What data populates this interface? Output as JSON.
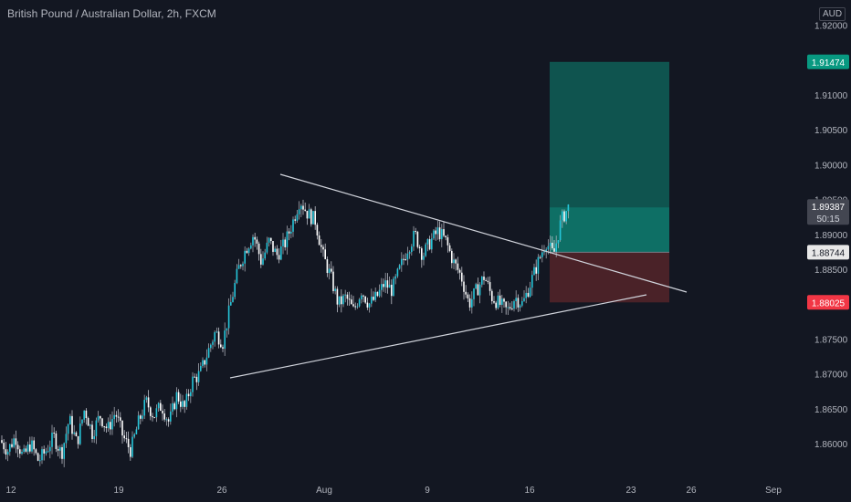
{
  "title": "British Pound / Australian Dollar, 2h, FXCM",
  "currency": "AUD",
  "chart_data": {
    "type": "candlestick",
    "symbol": "GBPAUD",
    "interval": "2h",
    "source": "FXCM",
    "yticks": [
      "1.92000",
      "1.91000",
      "1.90500",
      "1.90000",
      "1.89500",
      "1.89000",
      "1.88500",
      "1.87500",
      "1.87000",
      "1.86500",
      "1.86000"
    ],
    "ytick_values": [
      1.92,
      1.91,
      1.905,
      1.9,
      1.895,
      1.89,
      1.885,
      1.875,
      1.87,
      1.865,
      1.86
    ],
    "xticks": [
      "12",
      "19",
      "26",
      "Aug",
      "9",
      "16",
      "23",
      "26",
      "Sep"
    ],
    "ylim": [
      1.8565,
      1.9215
    ],
    "price_labels": {
      "target": "1.91474",
      "current": "1.89387",
      "countdown": "50:15",
      "entry": "1.88744",
      "stop": "1.88025"
    },
    "levels": {
      "target": 1.91474,
      "current": 1.89387,
      "entry": 1.88744,
      "stop": 1.88025
    },
    "colors": {
      "up": "#26a69a",
      "down": "#ef5350",
      "upBody": "#26c6da",
      "target_label": "#089981",
      "stop_label": "#f23645",
      "current_label": "#434651",
      "profit_zone": "#0f544f",
      "loss_zone": "#4a2228",
      "lines": "#d1d4dc"
    },
    "series_path": [
      [
        0,
        1.8605
      ],
      [
        1,
        1.859
      ],
      [
        2,
        1.861
      ],
      [
        3,
        1.858
      ],
      [
        4,
        1.86
      ],
      [
        5,
        1.8575
      ],
      [
        6,
        1.859
      ],
      [
        7,
        1.861
      ],
      [
        8,
        1.8585
      ],
      [
        9,
        1.8635
      ],
      [
        10,
        1.86
      ],
      [
        11,
        1.865
      ],
      [
        12,
        1.8615
      ],
      [
        13,
        1.864
      ],
      [
        14,
        1.862
      ],
      [
        15,
        1.8645
      ],
      [
        16,
        1.861
      ],
      [
        17,
        1.859
      ],
      [
        18,
        1.863
      ],
      [
        19,
        1.866
      ],
      [
        20,
        1.864
      ],
      [
        21,
        1.8655
      ],
      [
        22,
        1.863
      ],
      [
        23,
        1.867
      ],
      [
        24,
        1.865
      ],
      [
        25,
        1.869
      ],
      [
        26,
        1.87
      ],
      [
        27,
        1.873
      ],
      [
        28,
        1.876
      ],
      [
        29,
        1.8745
      ],
      [
        30,
        1.88
      ],
      [
        31,
        1.885
      ],
      [
        32,
        1.888
      ],
      [
        33,
        1.89
      ],
      [
        34,
        1.886
      ],
      [
        35,
        1.889
      ],
      [
        36,
        1.887
      ],
      [
        37,
        1.8885
      ],
      [
        38,
        1.8915
      ],
      [
        39,
        1.895
      ],
      [
        40,
        1.893
      ],
      [
        41,
        1.892
      ],
      [
        42,
        1.887
      ],
      [
        43,
        1.884
      ],
      [
        44,
        1.88
      ],
      [
        45,
        1.881
      ],
      [
        46,
        1.879
      ],
      [
        47,
        1.882
      ],
      [
        48,
        1.88
      ],
      [
        49,
        1.881
      ],
      [
        50,
        1.883
      ],
      [
        51,
        1.882
      ],
      [
        52,
        1.885
      ],
      [
        53,
        1.888
      ],
      [
        54,
        1.89
      ],
      [
        55,
        1.887
      ],
      [
        56,
        1.889
      ],
      [
        57,
        1.8905
      ],
      [
        58,
        1.889
      ],
      [
        59,
        1.886
      ],
      [
        60,
        1.884
      ],
      [
        61,
        1.88
      ],
      [
        62,
        1.882
      ],
      [
        63,
        1.884
      ],
      [
        64,
        1.881
      ],
      [
        65,
        1.88
      ],
      [
        66,
        1.879
      ],
      [
        67,
        1.881
      ],
      [
        68,
        1.88
      ],
      [
        69,
        1.883
      ],
      [
        70,
        1.886
      ],
      [
        71,
        1.889
      ],
      [
        72,
        1.887
      ],
      [
        73,
        1.892
      ],
      [
        74,
        1.894
      ]
    ],
    "series_x_range": [
      0,
      74
    ],
    "series_time_range_px": [
      0,
      623
    ],
    "drawings": {
      "upper_trendline": {
        "from": [
          1.8985,
          0.328
        ],
        "to": [
          1.882,
          0.806
        ]
      },
      "lower_trendline": {
        "from": [
          1.8695,
          0.268
        ],
        "to": [
          1.8817,
          0.759
        ]
      }
    }
  },
  "x_labels": [
    "12",
    "19",
    "26",
    "Aug",
    "9",
    "16",
    "23",
    "26",
    "Sep"
  ]
}
